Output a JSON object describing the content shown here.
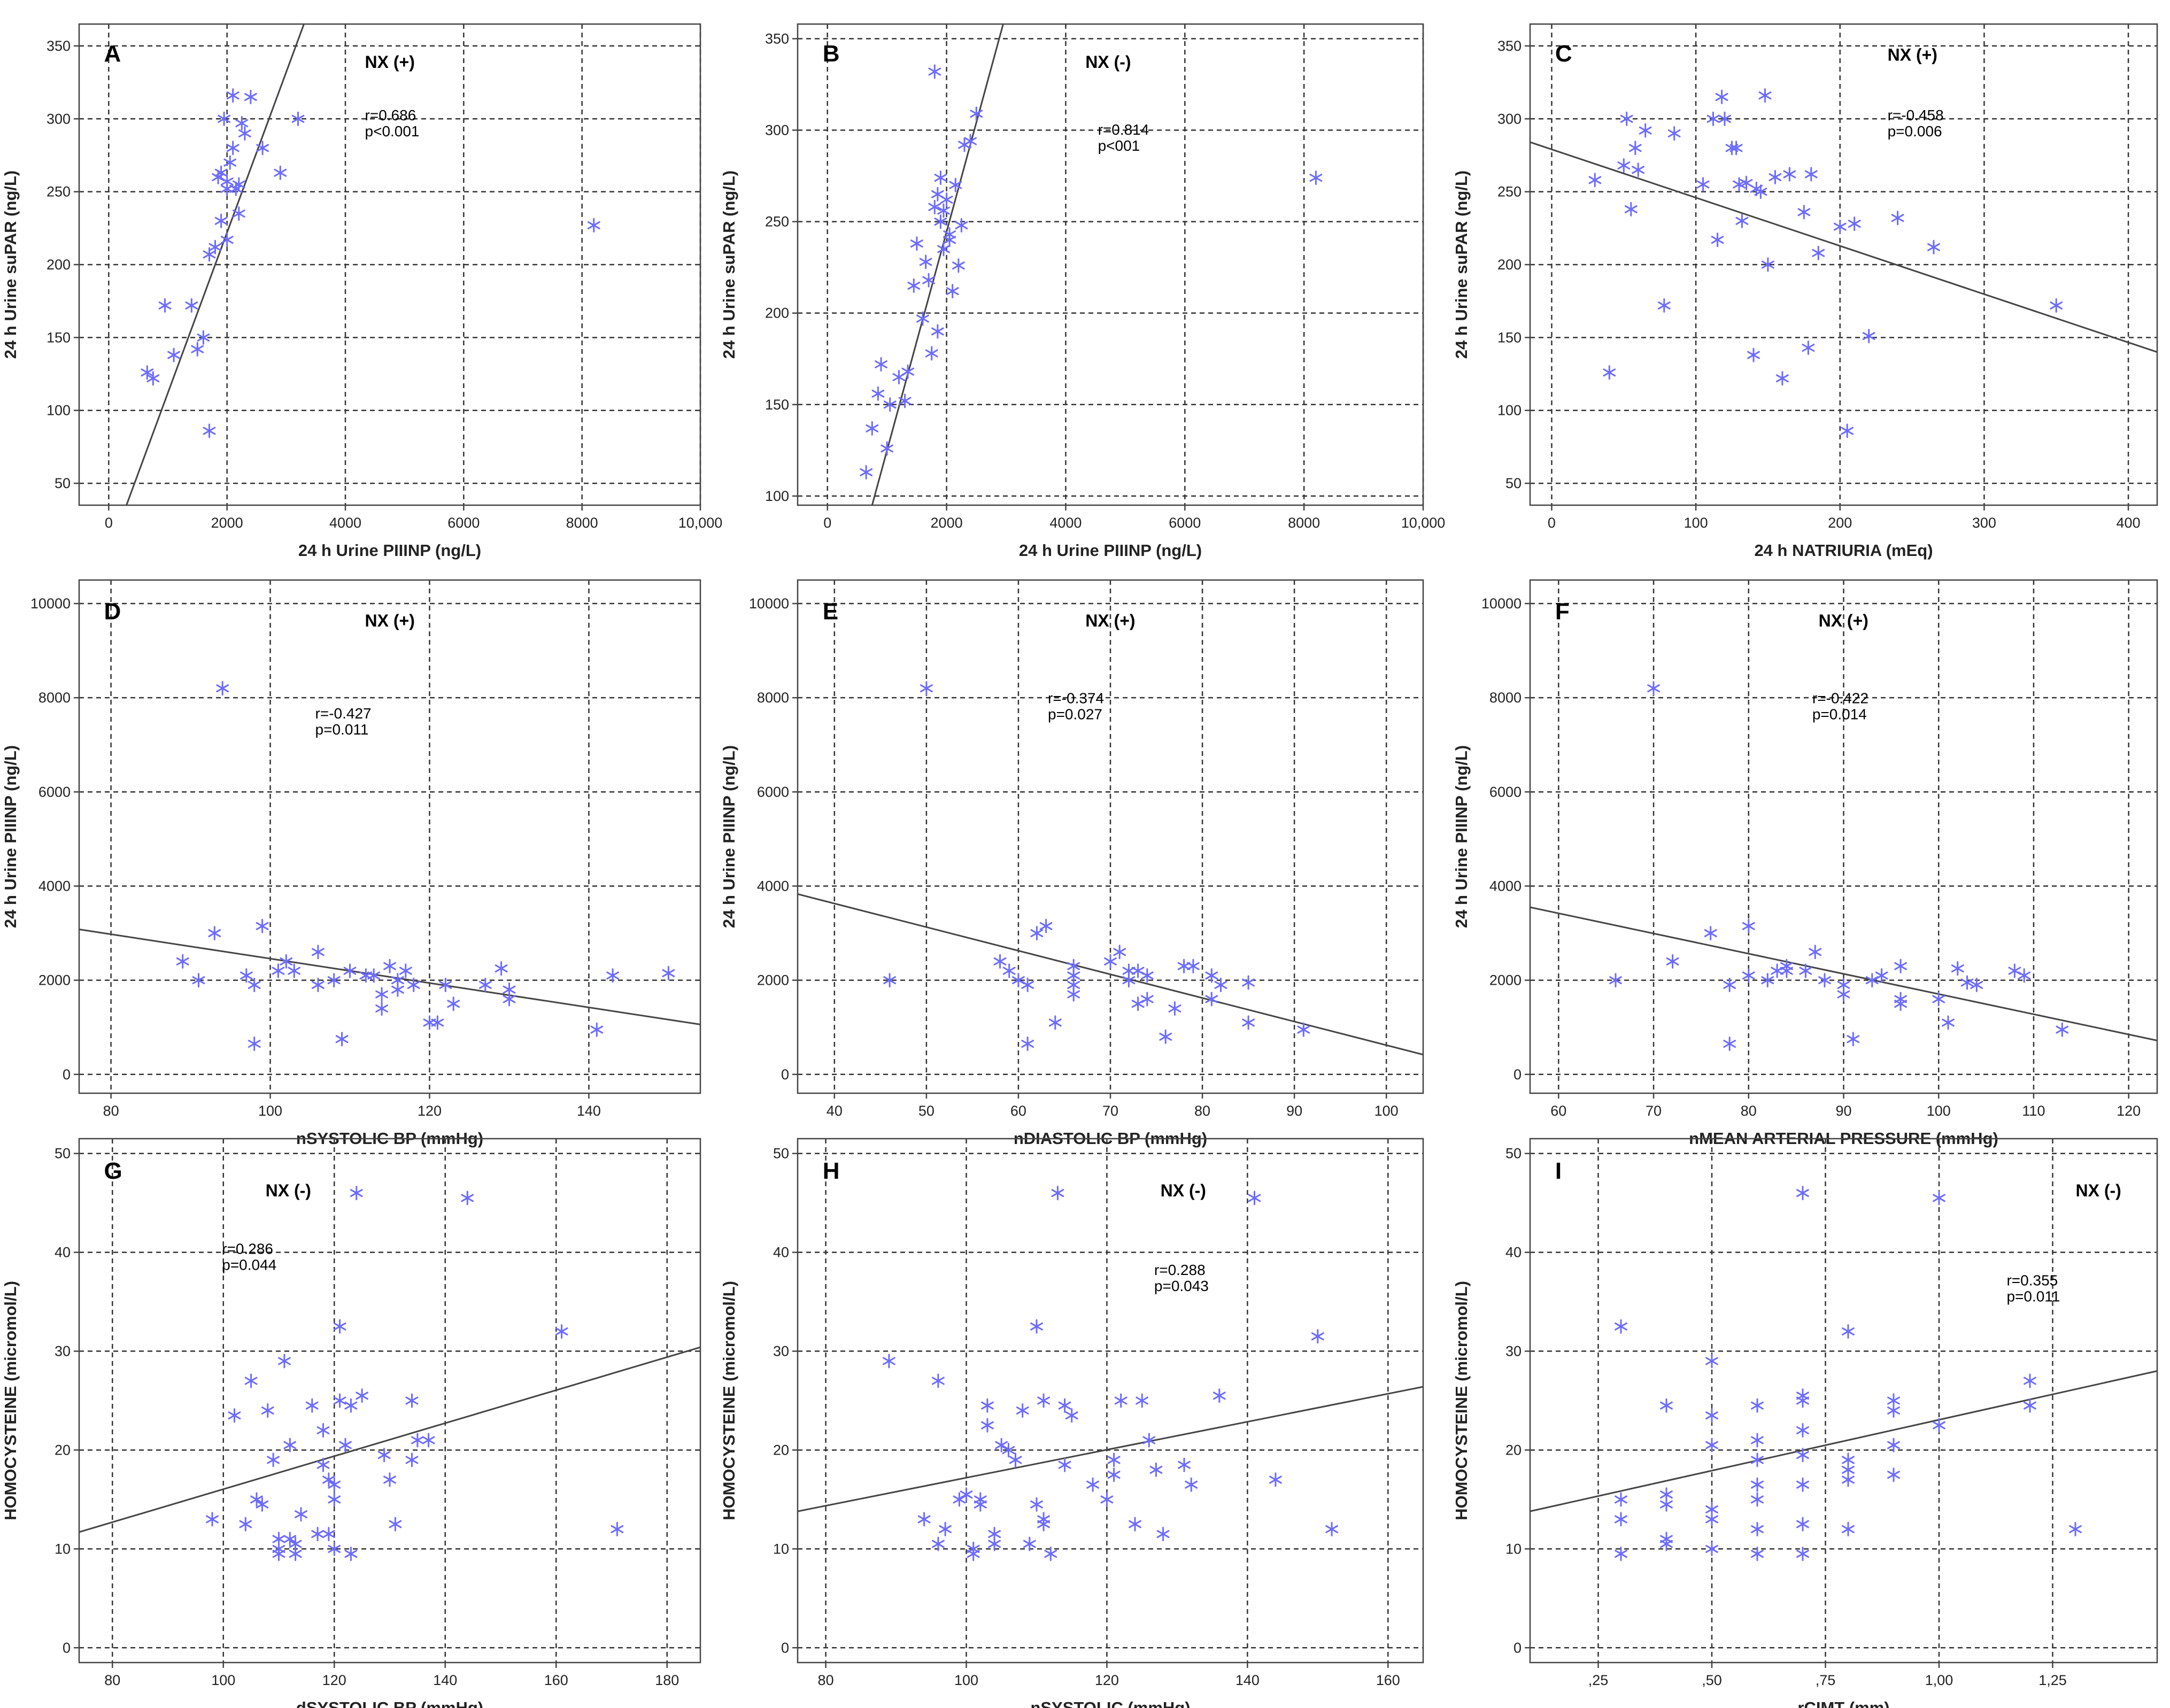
{
  "chart_data": [
    {
      "type": "scatter",
      "panel": "A",
      "label": "NX (+)",
      "stats": [
        "r=0.686",
        "p<0.001"
      ],
      "xlabel": "24 h Urine PIIINP (ng/L)",
      "ylabel": "24 h Urine suPAR (ng/L)",
      "xlim": [
        -500,
        10000
      ],
      "ylim": [
        35,
        365
      ],
      "xticks": [
        0,
        2000,
        4000,
        6000,
        8000,
        10000
      ],
      "xtick_labels": [
        "0",
        "2000",
        "4000",
        "6000",
        "8000",
        "10,000"
      ],
      "yticks": [
        50,
        100,
        150,
        200,
        250,
        300,
        350
      ],
      "ytick_labels": [
        "50",
        "100",
        "150",
        "200",
        "250",
        "300",
        "350"
      ],
      "fit": [
        [
          300,
          35
        ],
        [
          3300,
          365
        ]
      ],
      "x": [
        650,
        750,
        950,
        1100,
        1400,
        1500,
        1600,
        1700,
        1700,
        1800,
        1850,
        1900,
        1950,
        2000,
        2000,
        2050,
        2100,
        2150,
        2200,
        2250,
        2300,
        2400,
        2600,
        2900,
        3200,
        8200,
        1900,
        2100,
        2200,
        2000
      ],
      "y": [
        126,
        122,
        172,
        138,
        172,
        142,
        150,
        207,
        86,
        212,
        260,
        230,
        300,
        257,
        217,
        270,
        316,
        252,
        235,
        297,
        290,
        315,
        280,
        263,
        300,
        227,
        263,
        280,
        255,
        252
      ]
    },
    {
      "type": "scatter",
      "panel": "B",
      "label": "NX (-)",
      "stats": [
        "r=0.814",
        "p<001"
      ],
      "xlabel": "24 h Urine PIIINP (ng/L)",
      "ylabel": "24 h Urine suPAR (ng/L)",
      "xlim": [
        -500,
        10000
      ],
      "ylim": [
        95,
        358
      ],
      "xticks": [
        0,
        2000,
        4000,
        6000,
        8000,
        10000
      ],
      "xtick_labels": [
        "0",
        "2000",
        "4000",
        "6000",
        "8000",
        "10,000"
      ],
      "yticks": [
        100,
        150,
        200,
        250,
        300,
        350
      ],
      "ytick_labels": [
        "100",
        "150",
        "200",
        "250",
        "300",
        "350"
      ],
      "fit": [
        [
          750,
          95
        ],
        [
          2950,
          358
        ]
      ],
      "x": [
        650,
        750,
        850,
        900,
        1000,
        1050,
        1200,
        1300,
        1350,
        1450,
        1500,
        1600,
        1650,
        1700,
        1750,
        1800,
        1800,
        1850,
        1900,
        1900,
        1950,
        2000,
        2050,
        2100,
        2150,
        2200,
        2250,
        2300,
        2400,
        2500,
        1850,
        8200,
        2050,
        1950
      ],
      "y": [
        113,
        137,
        156,
        172,
        126,
        150,
        165,
        152,
        168,
        215,
        238,
        197,
        228,
        218,
        178,
        258,
        332,
        190,
        250,
        274,
        235,
        262,
        243,
        212,
        270,
        226,
        248,
        292,
        294,
        309,
        265,
        274,
        240,
        256
      ]
    },
    {
      "type": "scatter",
      "panel": "C",
      "label": "NX (+)",
      "stats": [
        "r=-0.458",
        "p=0.006"
      ],
      "xlabel": "24 h NATRIURIA (mEq)",
      "ylabel": "24 h Urine suPAR (ng/L)",
      "xlim": [
        -15,
        420
      ],
      "ylim": [
        35,
        365
      ],
      "xticks": [
        0,
        100,
        200,
        300,
        400
      ],
      "xtick_labels": [
        "0",
        "100",
        "200",
        "300",
        "400"
      ],
      "yticks": [
        50,
        100,
        150,
        200,
        250,
        300,
        350
      ],
      "ytick_labels": [
        "50",
        "100",
        "150",
        "200",
        "250",
        "300",
        "350"
      ],
      "fit": [
        [
          -15,
          284
        ],
        [
          420,
          140
        ]
      ],
      "x": [
        30,
        40,
        50,
        52,
        55,
        58,
        60,
        65,
        78,
        85,
        105,
        112,
        115,
        118,
        120,
        125,
        128,
        130,
        132,
        135,
        140,
        142,
        145,
        148,
        150,
        155,
        160,
        165,
        175,
        178,
        180,
        185,
        200,
        205,
        210,
        220,
        240,
        265,
        350
      ],
      "y": [
        258,
        126,
        268,
        300,
        238,
        280,
        265,
        292,
        172,
        290,
        255,
        300,
        217,
        315,
        300,
        280,
        280,
        255,
        230,
        256,
        138,
        252,
        250,
        316,
        200,
        260,
        122,
        262,
        236,
        143,
        262,
        208,
        226,
        86,
        228,
        151,
        232,
        212,
        172
      ]
    },
    {
      "type": "scatter",
      "panel": "D",
      "label": "NX (+)",
      "stats": [
        "r=-0.427",
        "p=0.011"
      ],
      "xlabel": "nSYSTOLIC BP (mmHg)",
      "ylabel": "24 h Urine PIIINP (ng/L)",
      "xlim": [
        76,
        154
      ],
      "ylim": [
        -400,
        10500
      ],
      "xticks": [
        80,
        100,
        120,
        140
      ],
      "xtick_labels": [
        "80",
        "100",
        "120",
        "140"
      ],
      "yticks": [
        0,
        2000,
        4000,
        6000,
        8000,
        10000
      ],
      "ytick_labels": [
        "0",
        "2000",
        "4000",
        "6000",
        "8000",
        "10000"
      ],
      "fit": [
        [
          76,
          3080
        ],
        [
          154,
          1060
        ]
      ],
      "x": [
        89,
        91,
        93,
        94,
        97,
        98,
        98,
        99,
        101,
        102,
        103,
        106,
        106,
        108,
        109,
        110,
        112,
        113,
        114,
        114,
        115,
        116,
        116,
        117,
        118,
        120,
        121,
        122,
        123,
        127,
        129,
        130,
        130,
        141,
        143,
        150
      ],
      "y": [
        2400,
        2000,
        3000,
        8200,
        2100,
        650,
        1900,
        3150,
        2200,
        2400,
        2200,
        2600,
        1900,
        2000,
        750,
        2200,
        2100,
        2100,
        1700,
        1400,
        2300,
        2000,
        1800,
        2200,
        1900,
        1100,
        1100,
        1900,
        1500,
        1900,
        2250,
        1800,
        1600,
        950,
        2100,
        2150
      ]
    },
    {
      "type": "scatter",
      "panel": "E",
      "label": "NX (+)",
      "stats": [
        "r=-0.374",
        "p=0.027"
      ],
      "xlabel": "nDIASTOLIC BP (mmHg)",
      "ylabel": "24 h Urine PIIINP (ng/L)",
      "xlim": [
        36,
        104
      ],
      "ylim": [
        -400,
        10500
      ],
      "xticks": [
        40,
        50,
        60,
        70,
        80,
        90,
        100
      ],
      "xtick_labels": [
        "40",
        "50",
        "60",
        "70",
        "80",
        "90",
        "100"
      ],
      "yticks": [
        0,
        2000,
        4000,
        6000,
        8000,
        10000
      ],
      "ytick_labels": [
        "0",
        "2000",
        "4000",
        "6000",
        "8000",
        "10000"
      ],
      "fit": [
        [
          36,
          3830
        ],
        [
          104,
          420
        ]
      ],
      "x": [
        46,
        50,
        58,
        59,
        60,
        61,
        61,
        62,
        63,
        64,
        66,
        66,
        66,
        66,
        70,
        71,
        72,
        72,
        73,
        73,
        74,
        74,
        76,
        77,
        78,
        79,
        81,
        81,
        82,
        85,
        85,
        91
      ],
      "y": [
        2000,
        8200,
        2400,
        2200,
        2000,
        1900,
        650,
        3000,
        3150,
        1100,
        2300,
        2100,
        1900,
        1700,
        2400,
        2600,
        2200,
        2000,
        2200,
        1500,
        1600,
        2100,
        800,
        1400,
        2300,
        2300,
        2100,
        1600,
        1900,
        1950,
        1100,
        950
      ]
    },
    {
      "type": "scatter",
      "panel": "F",
      "label": "NX (+)",
      "stats": [
        "r=-0.422",
        "p=0.014"
      ],
      "xlabel": "nMEAN ARTERIAL PRESSURE (mmHg)",
      "ylabel": "24 h Urine PIIINP (ng/L)",
      "xlim": [
        57,
        123
      ],
      "ylim": [
        -400,
        10500
      ],
      "xticks": [
        60,
        70,
        80,
        90,
        100,
        110,
        120
      ],
      "xtick_labels": [
        "60",
        "70",
        "80",
        "90",
        "100",
        "110",
        "120"
      ],
      "yticks": [
        0,
        2000,
        4000,
        6000,
        8000,
        10000
      ],
      "ytick_labels": [
        "0",
        "2000",
        "4000",
        "6000",
        "8000",
        "10000"
      ],
      "fit": [
        [
          57,
          3550
        ],
        [
          123,
          720
        ]
      ],
      "x": [
        66,
        70,
        72,
        76,
        78,
        78,
        80,
        80,
        82,
        83,
        84,
        84,
        86,
        87,
        88,
        90,
        90,
        91,
        93,
        94,
        96,
        96,
        96,
        100,
        101,
        102,
        103,
        104,
        108,
        109,
        113
      ],
      "y": [
        2000,
        8200,
        2400,
        3000,
        1900,
        650,
        3150,
        2100,
        2000,
        2200,
        2300,
        2200,
        2200,
        2600,
        2000,
        1900,
        1700,
        750,
        2000,
        2100,
        2300,
        1600,
        1500,
        1600,
        1100,
        2250,
        1950,
        1900,
        2200,
        2100,
        950
      ]
    },
    {
      "type": "scatter",
      "panel": "G",
      "label": "NX (-)",
      "stats": [
        "r=0.286",
        "p=0.044"
      ],
      "xlabel": "dSYSTOLIC BP (mmHg)",
      "ylabel": "HOMOCYSTEINE (micromol/L)",
      "xlim": [
        74,
        186
      ],
      "ylim": [
        -1.5,
        51.5
      ],
      "xticks": [
        80,
        100,
        120,
        140,
        160,
        180
      ],
      "xtick_labels": [
        "80",
        "100",
        "120",
        "140",
        "160",
        "180"
      ],
      "yticks": [
        0,
        10,
        20,
        30,
        40,
        50
      ],
      "ytick_labels": [
        "0",
        "10",
        "20",
        "30",
        "40",
        "50"
      ],
      "fit": [
        [
          74,
          11.7
        ],
        [
          186,
          30.4
        ]
      ],
      "x": [
        98,
        102,
        104,
        105,
        106,
        107,
        108,
        109,
        110,
        110,
        110,
        111,
        112,
        112,
        113,
        113,
        114,
        116,
        117,
        118,
        118,
        119,
        119,
        120,
        120,
        120,
        121,
        121,
        122,
        123,
        123,
        124,
        125,
        129,
        130,
        131,
        134,
        134,
        135,
        137,
        144,
        161,
        171
      ],
      "y": [
        13,
        23.5,
        12.5,
        27,
        15,
        14.5,
        24,
        19,
        10,
        11,
        9.5,
        29,
        20.5,
        11,
        10.5,
        9.5,
        13.5,
        24.5,
        11.5,
        18.5,
        22,
        11.5,
        17,
        15,
        16.5,
        10,
        32.5,
        25,
        20.5,
        9.5,
        24.5,
        46,
        25.5,
        19.5,
        17,
        12.5,
        25,
        19,
        21,
        21,
        45.5,
        32,
        12
      ]
    },
    {
      "type": "scatter",
      "panel": "H",
      "label": "NX (-)",
      "stats": [
        "r=0.288",
        "p=0.043"
      ],
      "xlabel": "nSYSTOLIC (mmHg)",
      "ylabel": "HOMOCYSTEINE (micromol/L)",
      "xlim": [
        76,
        165
      ],
      "ylim": [
        -1.5,
        51.5
      ],
      "xticks": [
        80,
        100,
        120,
        140,
        160
      ],
      "xtick_labels": [
        "80",
        "100",
        "120",
        "140",
        "160"
      ],
      "yticks": [
        0,
        10,
        20,
        30,
        40,
        50
      ],
      "ytick_labels": [
        "0",
        "10",
        "20",
        "30",
        "40",
        "50"
      ],
      "fit": [
        [
          76,
          13.8
        ],
        [
          165,
          26.4
        ]
      ],
      "x": [
        89,
        94,
        96,
        96,
        97,
        99,
        100,
        101,
        101,
        102,
        102,
        103,
        103,
        104,
        104,
        105,
        106,
        107,
        108,
        109,
        110,
        110,
        111,
        111,
        111,
        112,
        113,
        114,
        114,
        115,
        118,
        120,
        121,
        121,
        122,
        124,
        125,
        126,
        127,
        128,
        131,
        132,
        136,
        141,
        144,
        150,
        152
      ],
      "y": [
        29,
        13,
        27,
        10.5,
        12,
        15,
        15.5,
        9.5,
        10,
        15,
        14.5,
        24.5,
        22.5,
        10.5,
        11.5,
        20.5,
        20,
        19,
        24,
        10.5,
        14.5,
        32.5,
        25,
        12.5,
        13,
        9.5,
        46,
        18.5,
        24.5,
        23.5,
        16.5,
        15,
        17.5,
        19,
        25,
        12.5,
        25,
        21,
        18,
        11.5,
        18.5,
        16.5,
        25.5,
        45.5,
        17,
        31.5,
        12
      ]
    },
    {
      "type": "scatter",
      "panel": "I",
      "label": "NX (-)",
      "stats": [
        "r=0.355",
        "p=0.011"
      ],
      "xlabel": "rCIMT (mm)",
      "ylabel": "HOMOCYSTEINE (micromol/L)",
      "xlim": [
        0.1,
        1.48
      ],
      "ylim": [
        -1.5,
        51.5
      ],
      "xticks": [
        0.25,
        0.5,
        0.75,
        1.0,
        1.25
      ],
      "xtick_labels": [
        ",25",
        ",50",
        ",75",
        "1,00",
        "1,25"
      ],
      "yticks": [
        0,
        10,
        20,
        30,
        40,
        50
      ],
      "ytick_labels": [
        "0",
        "10",
        "20",
        "30",
        "40",
        "50"
      ],
      "fit": [
        [
          0.1,
          13.8
        ],
        [
          1.48,
          28.0
        ]
      ],
      "x": [
        0.3,
        0.3,
        0.3,
        0.3,
        0.4,
        0.4,
        0.4,
        0.4,
        0.4,
        0.5,
        0.5,
        0.5,
        0.5,
        0.5,
        0.5,
        0.6,
        0.6,
        0.6,
        0.6,
        0.6,
        0.6,
        0.6,
        0.7,
        0.7,
        0.7,
        0.7,
        0.7,
        0.7,
        0.7,
        0.7,
        0.8,
        0.8,
        0.8,
        0.8,
        0.8,
        0.9,
        0.9,
        0.9,
        0.9,
        1.0,
        1.0,
        1.2,
        1.2,
        1.3
      ],
      "y": [
        32.5,
        15,
        13,
        9.5,
        24.5,
        15.5,
        14.5,
        11,
        10.5,
        29,
        23.5,
        20.5,
        14,
        13,
        10,
        24.5,
        21,
        19,
        16.5,
        15,
        12,
        9.5,
        46,
        25.5,
        25,
        22,
        19.5,
        16.5,
        12.5,
        9.5,
        32,
        19,
        17,
        12,
        18,
        25,
        24,
        20.5,
        17.5,
        45.5,
        22.5,
        27,
        24.5,
        12
      ]
    }
  ]
}
